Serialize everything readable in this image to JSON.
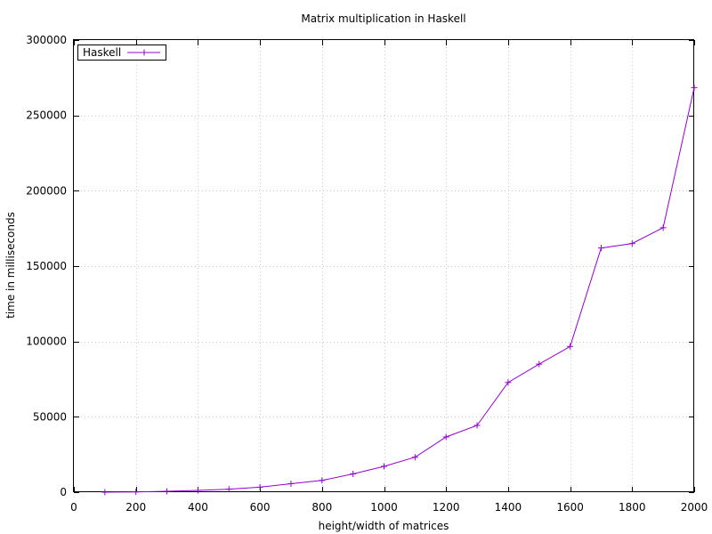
{
  "chart_data": {
    "type": "line",
    "title": "Matrix multiplication in Haskell",
    "xlabel": "height/width of matrices",
    "ylabel": "time in milliseconds",
    "xlim": [
      0,
      2000
    ],
    "ylim": [
      0,
      300000
    ],
    "xticks": [
      0,
      200,
      400,
      600,
      800,
      1000,
      1200,
      1400,
      1600,
      1800,
      2000
    ],
    "yticks": [
      0,
      50000,
      100000,
      150000,
      200000,
      250000,
      300000
    ],
    "xtick_labels": [
      "0",
      "200",
      "400",
      "600",
      "800",
      "1000",
      "1200",
      "1400",
      "1600",
      "1800",
      "2000"
    ],
    "ytick_labels": [
      "0",
      "50000",
      "100000",
      "150000",
      "200000",
      "250000",
      "300000"
    ],
    "grid": true,
    "legend_position": "top-left",
    "x": [
      100,
      200,
      300,
      400,
      500,
      600,
      700,
      800,
      900,
      1000,
      1100,
      1200,
      1300,
      1400,
      1500,
      1600,
      1700,
      1800,
      1900,
      2000
    ],
    "series": [
      {
        "name": "Haskell",
        "color": "#9400d3",
        "marker": "plus",
        "values": [
          0,
          200,
          600,
          1200,
          2000,
          3300,
          5600,
          7800,
          12100,
          17100,
          23200,
          36600,
          44300,
          72800,
          85000,
          96700,
          162000,
          165000,
          175500,
          268500
        ]
      }
    ]
  }
}
